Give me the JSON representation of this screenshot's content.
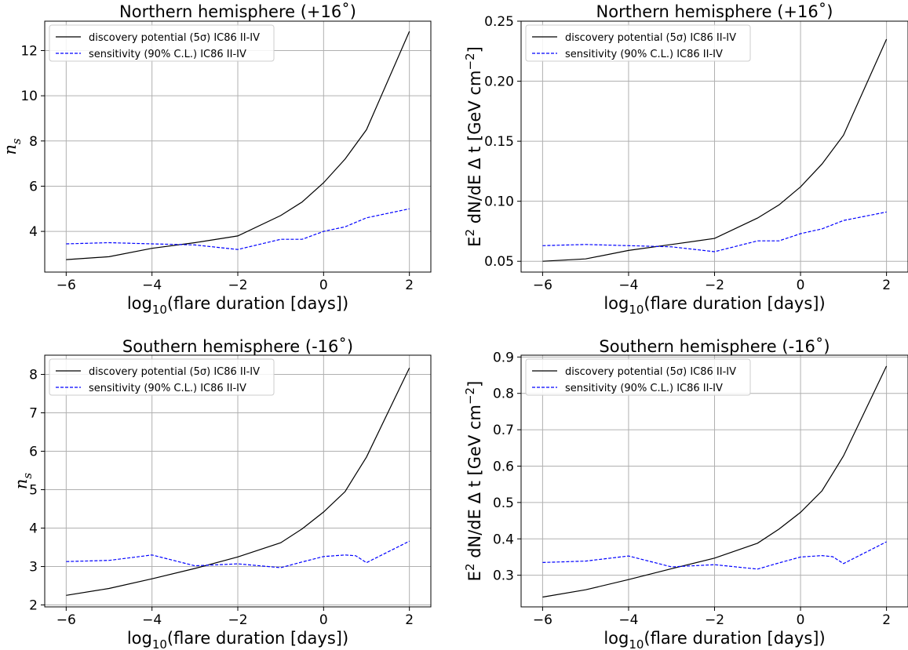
{
  "figure": {
    "width": 1157,
    "height": 829
  },
  "legend": {
    "discovery_label": "discovery potential (5σ) IC86 II-IV",
    "sensitivity_label": "sensitivity (90% C.L.) IC86 II-IV"
  },
  "colors": {
    "discovery": "#000000",
    "sensitivity": "#0000ff",
    "grid": "#b0b0b0"
  },
  "chart_data": [
    {
      "type": "line",
      "title": "Northern hemisphere (+16˚)",
      "xlabel": "log10(flare duration [days])",
      "ylabel": "n_s",
      "xlim": [
        -6.5,
        2.5
      ],
      "ylim": [
        2.2,
        13.3
      ],
      "xticks": [
        -6,
        -4,
        -2,
        0,
        2
      ],
      "yticks": [
        4,
        6,
        8,
        10,
        12
      ],
      "ytick_labels": [
        "4",
        "6",
        "8",
        "10",
        "12"
      ],
      "grid": true,
      "legend_position": "top-left",
      "series": [
        {
          "name": "discovery potential (5σ) IC86 II-IV",
          "style": "solid",
          "x": [
            -6,
            -5,
            -4,
            -3,
            -2,
            -1,
            -0.5,
            0,
            0.5,
            1,
            2
          ],
          "y": [
            2.75,
            2.88,
            3.25,
            3.5,
            3.8,
            4.7,
            5.3,
            6.15,
            7.2,
            8.5,
            12.85
          ]
        },
        {
          "name": "sensitivity (90% C.L.) IC86 II-IV",
          "style": "dashed",
          "x": [
            -6,
            -5,
            -4,
            -3,
            -2,
            -1,
            -0.5,
            0,
            0.5,
            1,
            2
          ],
          "y": [
            3.45,
            3.5,
            3.45,
            3.4,
            3.2,
            3.65,
            3.65,
            4.0,
            4.2,
            4.6,
            5.0
          ]
        }
      ]
    },
    {
      "type": "line",
      "title": "Northern hemisphere (+16˚)",
      "xlabel": "log10(flare duration [days])",
      "ylabel": "E^2 dN/dE Δ t [GeV cm^-2]",
      "xlim": [
        -6.5,
        2.5
      ],
      "ylim": [
        0.041,
        0.25
      ],
      "xticks": [
        -6,
        -4,
        -2,
        0,
        2
      ],
      "yticks": [
        0.05,
        0.1,
        0.15,
        0.2,
        0.25
      ],
      "ytick_labels": [
        "0.05",
        "0.10",
        "0.15",
        "0.20",
        "0.25"
      ],
      "grid": true,
      "legend_position": "top-left",
      "series": [
        {
          "name": "discovery potential (5σ) IC86 II-IV",
          "style": "solid",
          "x": [
            -6,
            -5,
            -4,
            -3,
            -2,
            -1,
            -0.5,
            0,
            0.5,
            1,
            2
          ],
          "y": [
            0.05,
            0.052,
            0.059,
            0.064,
            0.069,
            0.086,
            0.097,
            0.112,
            0.131,
            0.155,
            0.235
          ]
        },
        {
          "name": "sensitivity (90% C.L.) IC86 II-IV",
          "style": "dashed",
          "x": [
            -6,
            -5,
            -4,
            -3,
            -2,
            -1,
            -0.5,
            0,
            0.5,
            1,
            2
          ],
          "y": [
            0.063,
            0.064,
            0.063,
            0.062,
            0.058,
            0.067,
            0.067,
            0.073,
            0.077,
            0.084,
            0.091
          ]
        }
      ]
    },
    {
      "type": "line",
      "title": "Southern hemisphere (-16˚)",
      "xlabel": "log10(flare duration [days])",
      "ylabel": "n_s",
      "xlim": [
        -6.5,
        2.5
      ],
      "ylim": [
        1.95,
        8.5
      ],
      "xticks": [
        -6,
        -4,
        -2,
        0,
        2
      ],
      "yticks": [
        2,
        3,
        4,
        5,
        6,
        7,
        8
      ],
      "ytick_labels": [
        "2",
        "3",
        "4",
        "5",
        "6",
        "7",
        "8"
      ],
      "grid": true,
      "legend_position": "top-left",
      "series": [
        {
          "name": "discovery potential (5σ) IC86 II-IV",
          "style": "solid",
          "x": [
            -6,
            -5,
            -4,
            -3,
            -2,
            -1,
            -0.5,
            0,
            0.5,
            0.75,
            1,
            2
          ],
          "y": [
            2.25,
            2.43,
            2.68,
            2.95,
            3.25,
            3.62,
            3.98,
            4.42,
            4.95,
            5.4,
            5.85,
            8.17
          ]
        },
        {
          "name": "sensitivity (90% C.L.) IC86 II-IV",
          "style": "dashed",
          "x": [
            -6,
            -5,
            -4,
            -3,
            -2,
            -1,
            -0.5,
            0,
            0.5,
            0.75,
            1,
            2
          ],
          "y": [
            3.13,
            3.16,
            3.3,
            3.02,
            3.07,
            2.97,
            3.12,
            3.26,
            3.3,
            3.28,
            3.1,
            3.66
          ]
        }
      ]
    },
    {
      "type": "line",
      "title": "Southern hemisphere (-16˚)",
      "xlabel": "log10(flare duration [days])",
      "ylabel": "E^2 dN/dE Δ t [GeV cm^-2]",
      "xlim": [
        -6.5,
        2.5
      ],
      "ylim": [
        0.213,
        0.905
      ],
      "xticks": [
        -6,
        -4,
        -2,
        0,
        2
      ],
      "yticks": [
        0.3,
        0.4,
        0.5,
        0.6,
        0.7,
        0.8,
        0.9
      ],
      "ytick_labels": [
        "0.3",
        "0.4",
        "0.5",
        "0.6",
        "0.7",
        "0.8",
        "0.9"
      ],
      "grid": true,
      "legend_position": "top-left",
      "series": [
        {
          "name": "discovery potential (5σ) IC86 II-IV",
          "style": "solid",
          "x": [
            -6,
            -5,
            -4,
            -3,
            -2,
            -1,
            -0.5,
            0,
            0.5,
            0.75,
            1,
            2
          ],
          "y": [
            0.24,
            0.26,
            0.288,
            0.318,
            0.347,
            0.388,
            0.427,
            0.473,
            0.532,
            0.58,
            0.628,
            0.875
          ]
        },
        {
          "name": "sensitivity (90% C.L.) IC86 II-IV",
          "style": "dashed",
          "x": [
            -6,
            -5,
            -4,
            -3,
            -2,
            -1,
            -0.5,
            0,
            0.5,
            0.75,
            1,
            2
          ],
          "y": [
            0.335,
            0.339,
            0.353,
            0.323,
            0.329,
            0.317,
            0.334,
            0.35,
            0.354,
            0.351,
            0.332,
            0.392
          ]
        }
      ]
    }
  ]
}
